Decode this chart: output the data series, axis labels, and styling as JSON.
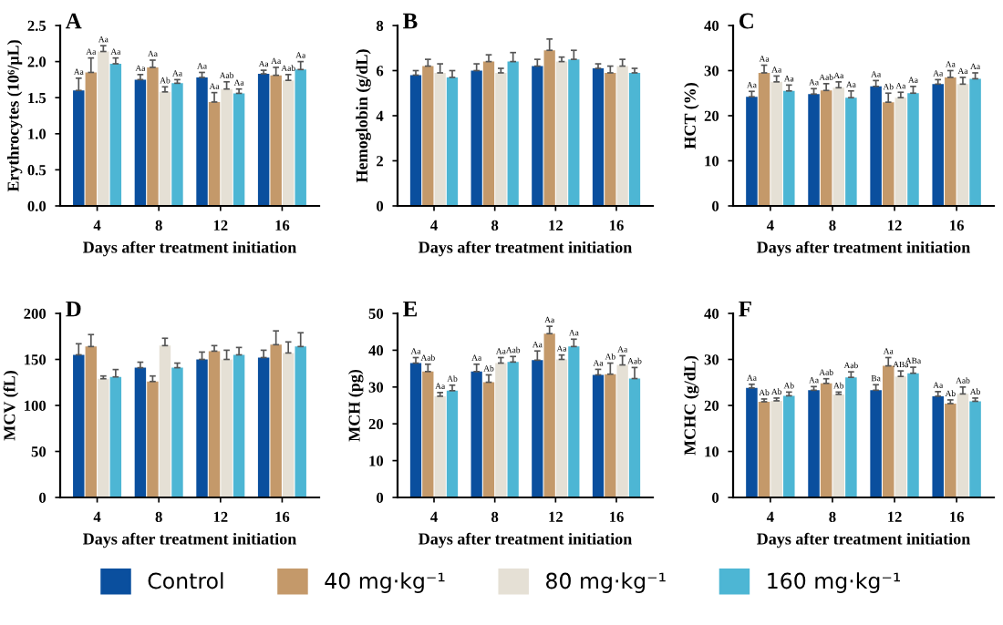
{
  "chart_data": [
    {
      "type": "bar",
      "title": "A",
      "xlabel": "Days after treatment initiation",
      "ylabel": "Erythrocytes (10⁶/μL)",
      "categories": [
        "4",
        "8",
        "12",
        "16"
      ],
      "ylim": [
        0,
        2.5
      ],
      "yticks": [
        {
          "value": 0,
          "label": "0.0"
        },
        0.5,
        {
          "value": 1,
          "label": "1.0"
        },
        1.5,
        {
          "value": 2,
          "label": "2.0"
        },
        2.5
      ],
      "legend": "bottom",
      "series": [
        {
          "name": "Control",
          "color": "#0a4f9e",
          "values": [
            1.6,
            1.75,
            1.78,
            1.83
          ],
          "errors": [
            0.17,
            0.07,
            0.07,
            0.05
          ],
          "value_labels": [
            "Aa",
            "Aa",
            "Aa",
            "Aa"
          ]
        },
        {
          "name": "40 mg·kg⁻¹",
          "color": "#c4996a",
          "values": [
            1.85,
            1.92,
            1.44,
            1.81
          ],
          "errors": [
            0.2,
            0.1,
            0.13,
            0.11
          ],
          "value_labels": [
            "Aa",
            "Aa",
            "Aa",
            "Aa"
          ]
        },
        {
          "name": "80 mg·kg⁻¹",
          "color": "#e5e0d5",
          "values": [
            2.14,
            1.58,
            1.62,
            1.74
          ],
          "errors": [
            0.08,
            0.07,
            0.1,
            0.08
          ],
          "value_labels": [
            "Aa",
            "Ab",
            "Aab",
            "Aab"
          ]
        },
        {
          "name": "160 mg·kg⁻¹",
          "color": "#4db6d4",
          "values": [
            1.97,
            1.7,
            1.56,
            1.89
          ],
          "errors": [
            0.08,
            0.05,
            0.06,
            0.11
          ],
          "value_labels": [
            "Aa",
            "Aa",
            "Aa",
            "Aa"
          ]
        }
      ]
    },
    {
      "type": "bar",
      "title": "B",
      "xlabel": "Days after treatment initiation",
      "ylabel": "Hemoglobin (g/dL)",
      "categories": [
        "4",
        "8",
        "12",
        "16"
      ],
      "ylim": [
        0,
        8
      ],
      "yticks": [
        0,
        2,
        4,
        6,
        8
      ],
      "legend": "bottom",
      "series": [
        {
          "color": "#0a4f9e",
          "values": [
            5.8,
            6.0,
            6.2,
            6.1
          ],
          "errors": [
            0.2,
            0.3,
            0.3,
            0.2
          ]
        },
        {
          "color": "#c4996a",
          "values": [
            6.2,
            6.4,
            6.9,
            5.9
          ],
          "errors": [
            0.3,
            0.3,
            0.5,
            0.3
          ]
        },
        {
          "color": "#e5e0d5",
          "values": [
            5.9,
            5.9,
            6.4,
            6.2
          ],
          "errors": [
            0.4,
            0.2,
            0.2,
            0.3
          ]
        },
        {
          "color": "#4db6d4",
          "values": [
            5.7,
            6.4,
            6.5,
            5.9
          ],
          "errors": [
            0.3,
            0.4,
            0.4,
            0.2
          ]
        }
      ]
    },
    {
      "type": "bar",
      "title": "C",
      "xlabel": "Days after treatment initiation",
      "ylabel": "HCT (%)",
      "categories": [
        "4",
        "8",
        "12",
        "16"
      ],
      "ylim": [
        0,
        40
      ],
      "yticks": [
        0,
        10,
        20,
        30,
        40
      ],
      "legend": "bottom",
      "series": [
        {
          "color": "#0a4f9e",
          "values": [
            24.2,
            24.8,
            26.5,
            27
          ],
          "errors": [
            1.2,
            1.2,
            1.3,
            1
          ],
          "value_labels": [
            "Aa",
            "Aa",
            "Aa",
            "Aa"
          ]
        },
        {
          "color": "#c4996a",
          "values": [
            29.5,
            25.6,
            23,
            28.5
          ],
          "errors": [
            1.7,
            1.5,
            2,
            1.5
          ],
          "value_labels": [
            "Aa",
            "Aab",
            "Ab",
            "Aa"
          ]
        },
        {
          "color": "#e5e0d5",
          "values": [
            27.5,
            26.2,
            24,
            27
          ],
          "errors": [
            1.3,
            1.3,
            1.2,
            1.5
          ],
          "value_labels": [
            "Aa",
            "Aa",
            "Aa",
            "Aa"
          ]
        },
        {
          "color": "#4db6d4",
          "values": [
            25.5,
            24,
            25,
            28.2
          ],
          "errors": [
            1.3,
            1.5,
            1.5,
            1.3
          ],
          "value_labels": [
            "Aa",
            "Aa",
            "Aa",
            "Aa"
          ]
        }
      ]
    },
    {
      "type": "bar",
      "title": "D",
      "xlabel": "Days after treatment initiation",
      "ylabel": "MCV (fL)",
      "categories": [
        "4",
        "8",
        "12",
        "16"
      ],
      "ylim": [
        0,
        200
      ],
      "yticks": [
        0,
        50,
        100,
        150,
        200
      ],
      "legend": "bottom",
      "series": [
        {
          "color": "#0a4f9e",
          "values": [
            155,
            141,
            150,
            152
          ],
          "errors": [
            12,
            6,
            8,
            8
          ]
        },
        {
          "color": "#c4996a",
          "values": [
            164,
            126,
            159,
            166
          ],
          "errors": [
            13,
            6,
            6,
            15
          ]
        },
        {
          "color": "#e5e0d5",
          "values": [
            129,
            165,
            150,
            157
          ],
          "errors": [
            3,
            8,
            10,
            12
          ]
        },
        {
          "color": "#4db6d4",
          "values": [
            131,
            141,
            155,
            164
          ],
          "errors": [
            8,
            5,
            8,
            15
          ]
        }
      ]
    },
    {
      "type": "bar",
      "title": "E",
      "xlabel": "Days after treatment initiation",
      "ylabel": "MCH (pg)",
      "categories": [
        "4",
        "8",
        "12",
        "16"
      ],
      "ylim": [
        0,
        50
      ],
      "yticks": [
        0,
        10,
        20,
        30,
        40,
        50
      ],
      "legend": "bottom",
      "series": [
        {
          "color": "#0a4f9e",
          "values": [
            36.5,
            34.2,
            37.3,
            33.3
          ],
          "errors": [
            1.5,
            2,
            2.5,
            1.5
          ],
          "value_labels": [
            "Aa",
            "Aa",
            "Aa",
            "Aa"
          ]
        },
        {
          "color": "#c4996a",
          "values": [
            34.2,
            31.3,
            44.5,
            33.5
          ],
          "errors": [
            2,
            2,
            2,
            3
          ],
          "value_labels": [
            "Aab",
            "Ab",
            "Aa",
            "Ab"
          ]
        },
        {
          "color": "#e5e0d5",
          "values": [
            27.5,
            36.5,
            37.5,
            36
          ],
          "errors": [
            1,
            1.5,
            1.2,
            2.5
          ],
          "value_labels": [
            "Aa",
            "Aa",
            "Aa",
            "Aa"
          ]
        },
        {
          "color": "#4db6d4",
          "values": [
            29,
            36.8,
            41,
            32.3
          ],
          "errors": [
            1.5,
            1.5,
            2,
            3
          ],
          "value_labels": [
            "Ab",
            "Aab",
            "Aa",
            "Aab"
          ]
        }
      ]
    },
    {
      "type": "bar",
      "title": "F",
      "xlabel": "Days after treatment initiation",
      "ylabel": "MCHC (g/dL)",
      "categories": [
        "4",
        "8",
        "12",
        "16"
      ],
      "ylim": [
        0,
        40
      ],
      "yticks": [
        0,
        10,
        20,
        30,
        40
      ],
      "legend": "bottom",
      "series": [
        {
          "color": "#0a4f9e",
          "values": [
            23.8,
            23.3,
            23.3,
            22
          ],
          "errors": [
            0.8,
            0.8,
            1.2,
            1
          ],
          "value_labels": [
            "Aa",
            "Aa",
            "Ba",
            "Aa"
          ]
        },
        {
          "color": "#c4996a",
          "values": [
            20.8,
            24.8,
            28.6,
            20.4
          ],
          "errors": [
            0.6,
            1,
            1.8,
            0.8
          ],
          "value_labels": [
            "Ab",
            "Aab",
            "Aa",
            "Ab"
          ]
        },
        {
          "color": "#e5e0d5",
          "values": [
            21,
            22.4,
            26.3,
            22.5
          ],
          "errors": [
            0.6,
            0.5,
            1.2,
            1.5
          ],
          "value_labels": [
            "Ab",
            "Ab",
            "ABa",
            "Aab"
          ]
        },
        {
          "color": "#4db6d4",
          "values": [
            22.1,
            26.1,
            27,
            20.9
          ],
          "errors": [
            0.8,
            1.2,
            1.3,
            0.7
          ],
          "value_labels": [
            "Ab",
            "Aab",
            "ABa",
            "Ab"
          ]
        }
      ]
    }
  ]
}
